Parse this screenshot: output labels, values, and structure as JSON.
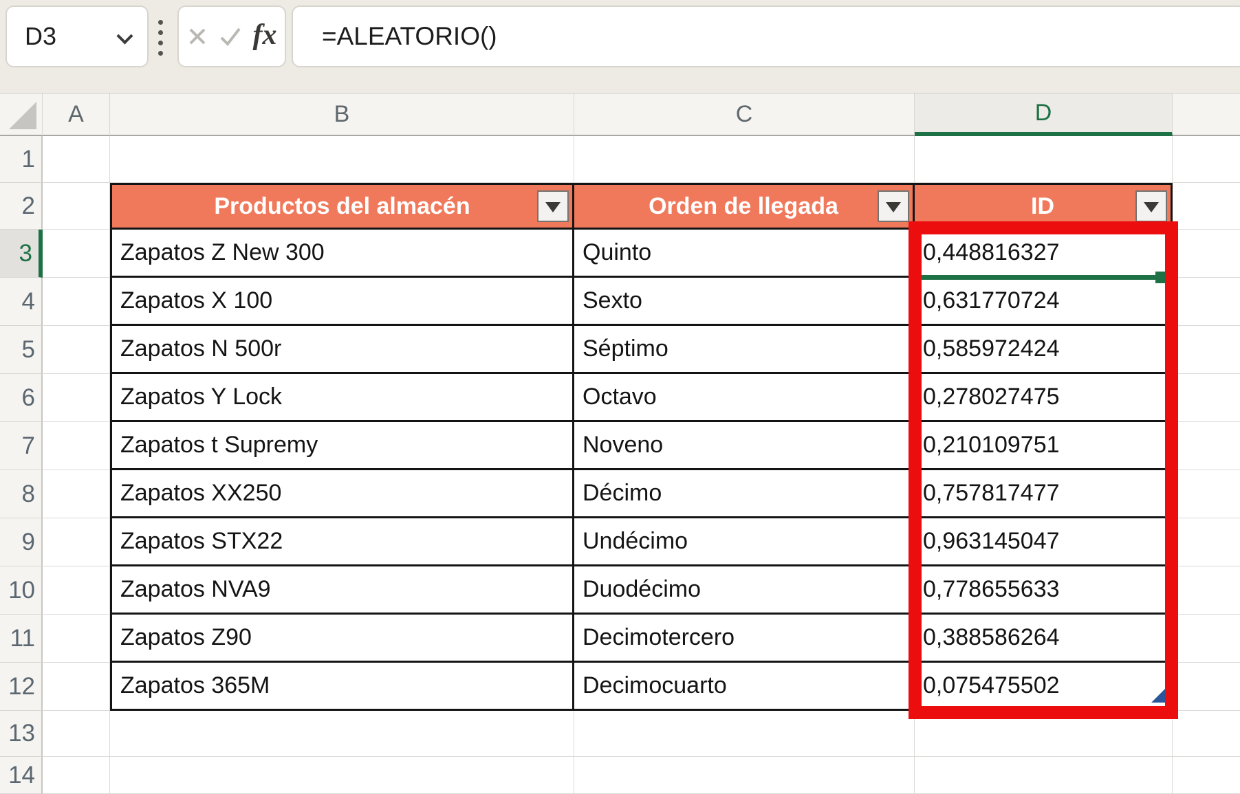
{
  "name_box": {
    "value": "D3"
  },
  "formula_bar": {
    "formula": "=ALEATORIO()",
    "fx_label": "fx"
  },
  "grid": {
    "column_letters": [
      "A",
      "B",
      "C",
      "D"
    ],
    "row_numbers": [
      "1",
      "2",
      "3",
      "4",
      "5",
      "6",
      "7",
      "8",
      "9",
      "10",
      "11",
      "12",
      "13",
      "14"
    ],
    "selected_cell": "D3",
    "selected_column": "D",
    "selected_row": "3"
  },
  "table": {
    "headers": [
      {
        "column": "B",
        "label": "Productos del almacén"
      },
      {
        "column": "C",
        "label": "Orden de llegada"
      },
      {
        "column": "D",
        "label": "ID"
      }
    ],
    "rows": [
      {
        "row": "3",
        "product": "Zapatos Z New 300",
        "order": "Quinto",
        "id": "0,448816327"
      },
      {
        "row": "4",
        "product": "Zapatos X 100",
        "order": "Sexto",
        "id": "0,631770724"
      },
      {
        "row": "5",
        "product": "Zapatos N 500r",
        "order": "Séptimo",
        "id": "0,585972424"
      },
      {
        "row": "6",
        "product": "Zapatos Y Lock",
        "order": "Octavo",
        "id": "0,278027475"
      },
      {
        "row": "7",
        "product": "Zapatos t Supremy",
        "order": "Noveno",
        "id": "0,210109751"
      },
      {
        "row": "8",
        "product": "Zapatos XX250",
        "order": "Décimo",
        "id": "0,757817477"
      },
      {
        "row": "9",
        "product": "Zapatos STX22",
        "order": "Undécimo",
        "id": "0,963145047"
      },
      {
        "row": "10",
        "product": "Zapatos NVA9",
        "order": "Duodécimo",
        "id": "0,778655633"
      },
      {
        "row": "11",
        "product": "Zapatos Z90",
        "order": "Decimotercero",
        "id": "0,388586264"
      },
      {
        "row": "12",
        "product": "Zapatos 365M",
        "order": "Decimocuarto",
        "id": "0,075475502"
      }
    ]
  },
  "annotations": {
    "highlighted_range": "D3:D12"
  },
  "colors": {
    "toolbar_bg": "#edebe4",
    "accent_green": "#1e7145",
    "table_header_fill": "#f0795b",
    "table_header_text": "#ffffff",
    "red_annotation": "#ec0e0e",
    "resize_handle_blue": "#2b579a"
  }
}
